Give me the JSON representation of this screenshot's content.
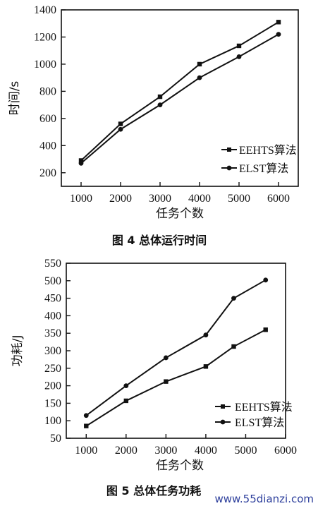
{
  "chart_data": [
    {
      "type": "line",
      "ylabel": "时间/s",
      "xlabel": "任务个数",
      "caption": "图 4   总体运行时间",
      "x": [
        1000,
        2000,
        3000,
        4000,
        5000,
        6000
      ],
      "xlim": [
        500,
        6500
      ],
      "ylim": [
        100,
        1400
      ],
      "xticks": [
        1000,
        2000,
        3000,
        4000,
        5000,
        6000
      ],
      "yticks": [
        200,
        400,
        600,
        800,
        1000,
        1200,
        1400
      ],
      "legend_position": "bottom-right",
      "series": [
        {
          "name": "EEHTS算法",
          "marker": "square",
          "values": [
            290,
            560,
            760,
            1000,
            1135,
            1310
          ]
        },
        {
          "name": "ELST算法",
          "marker": "circle",
          "values": [
            270,
            520,
            700,
            900,
            1055,
            1220
          ]
        }
      ]
    },
    {
      "type": "line",
      "ylabel": "功耗/J",
      "xlabel": "任务个数",
      "caption": "图 5   总体任务功耗",
      "x": [
        1000,
        2000,
        3000,
        4000,
        4700,
        5500
      ],
      "xlim": [
        500,
        6000
      ],
      "ylim": [
        50,
        550
      ],
      "xticks": [
        1000,
        2000,
        3000,
        4000,
        5000,
        6000
      ],
      "yticks": [
        50,
        100,
        150,
        200,
        250,
        300,
        350,
        400,
        450,
        500,
        550
      ],
      "legend_position": "bottom-right",
      "series": [
        {
          "name": "EEHTS算法",
          "marker": "square",
          "values": [
            85,
            157,
            212,
            255,
            312,
            360
          ]
        },
        {
          "name": "ELST算法",
          "marker": "circle",
          "values": [
            115,
            200,
            280,
            345,
            450,
            502
          ]
        }
      ]
    }
  ],
  "watermark": "www.55dianzi.com"
}
